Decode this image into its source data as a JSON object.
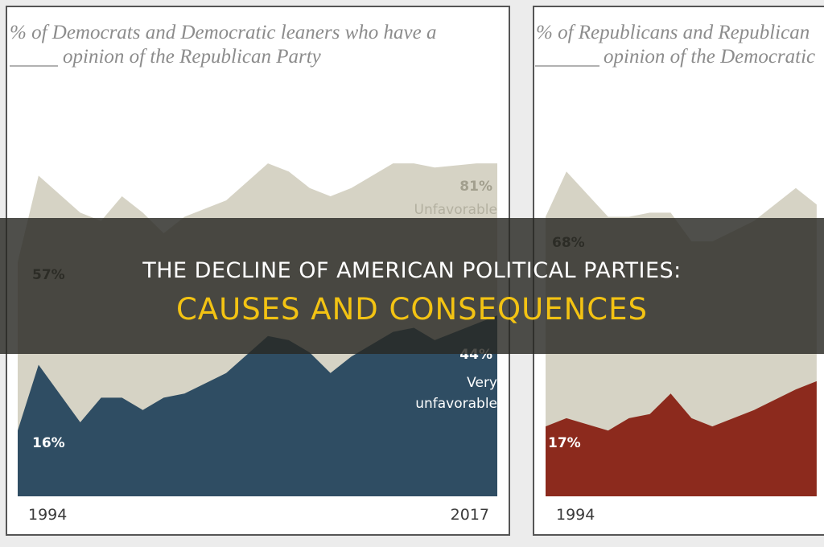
{
  "chart_data": [
    {
      "type": "area",
      "title": [
        "% of Democrats and Democratic leaners who have a",
        "opinion of the Republican Party"
      ],
      "x": [
        1994,
        1995,
        1997,
        1998,
        1999,
        2000,
        2001,
        2002,
        2004,
        2006,
        2007,
        2008,
        2009,
        2010,
        2012,
        2013,
        2014,
        2016,
        2017
      ],
      "xlim": [
        1994,
        2017
      ],
      "xticks": [
        1994,
        2017
      ],
      "ylim": [
        0,
        100
      ],
      "series": [
        {
          "name": "Unfavorable",
          "color": "#d6d3c5",
          "values": [
            57,
            78,
            69,
            67,
            73,
            69,
            64,
            68,
            72,
            81,
            79,
            75,
            73,
            75,
            81,
            81,
            80,
            81,
            81
          ]
        },
        {
          "name": "Very unfavorable",
          "color": "#2f4d63",
          "values": [
            16,
            32,
            18,
            24,
            24,
            21,
            24,
            25,
            30,
            39,
            38,
            35,
            30,
            34,
            40,
            41,
            38,
            42,
            44
          ]
        }
      ],
      "annotations": [
        "81%",
        "57%",
        "44%",
        "16%"
      ]
    },
    {
      "type": "area",
      "title": [
        "% of Republicans and Republican",
        "opinion of the Democratic"
      ],
      "x": [
        1994,
        1995,
        1997,
        1998,
        1999,
        2000,
        2001,
        2002,
        2004,
        2006,
        2007
      ],
      "xlim": [
        1994,
        2017
      ],
      "xticks": [
        1994
      ],
      "ylim": [
        0,
        100
      ],
      "series": [
        {
          "color": "#d6d3c5",
          "values": [
            68,
            79,
            68,
            68,
            69,
            69,
            62,
            62,
            67,
            75,
            71
          ]
        },
        {
          "color": "#8c2a1d",
          "values": [
            17,
            19,
            16,
            19,
            20,
            25,
            19,
            17,
            21,
            26,
            28
          ]
        }
      ],
      "annotations": [
        "68%",
        "17%"
      ]
    }
  ],
  "banner": {
    "line1": "THE DECLINE OF AMERICAN POLITICAL PARTIES:",
    "line2": "CAUSES AND CONSEQUENCES"
  }
}
